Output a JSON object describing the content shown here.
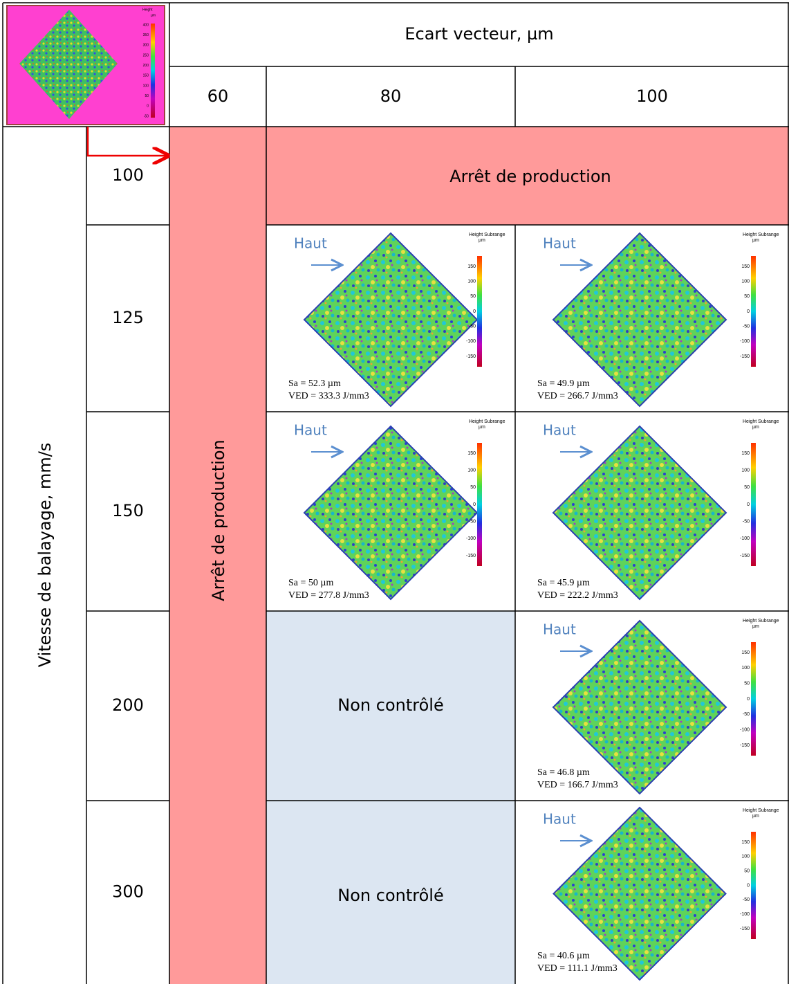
{
  "thumbnail": {
    "legend_title": "Height",
    "unit": "µm",
    "ticks": [
      "400",
      "350",
      "300",
      "250",
      "200",
      "150",
      "100",
      "50",
      "0",
      "-50"
    ]
  },
  "header": {
    "title": "Ecart vecteur, µm",
    "columns": [
      "60",
      "80",
      "100"
    ]
  },
  "row_header": "Vitesse de balayage, mm/s",
  "rows": [
    "100",
    "125",
    "150",
    "200",
    "300"
  ],
  "stopped": "Arrêt de production",
  "not_controlled": "Non contrôlé",
  "haut": "Haut",
  "colorbar": {
    "title": "Height Subrange",
    "unit": "µm",
    "ticks": [
      "150",
      "100",
      "50",
      "0",
      "-50",
      "-100",
      "-150"
    ]
  },
  "measurements": [
    {
      "sa": "Sa = 52.3 µm",
      "ved": "VED = 333.3 J/mm3"
    },
    {
      "sa": "Sa = 49.9 µm",
      "ved": "VED = 266.7 J/mm3"
    },
    {
      "sa": "Sa = 50 µm",
      "ved": "VED = 277.8 J/mm3"
    },
    {
      "sa": "Sa = 45.9 µm",
      "ved": "VED = 222.2 J/mm3"
    },
    {
      "sa": "Sa = 46.8 µm",
      "ved": "VED = 166.7 J/mm3"
    },
    {
      "sa": "Sa = 40.6 µm",
      "ved": "VED = 111.1 J/mm3"
    }
  ]
}
